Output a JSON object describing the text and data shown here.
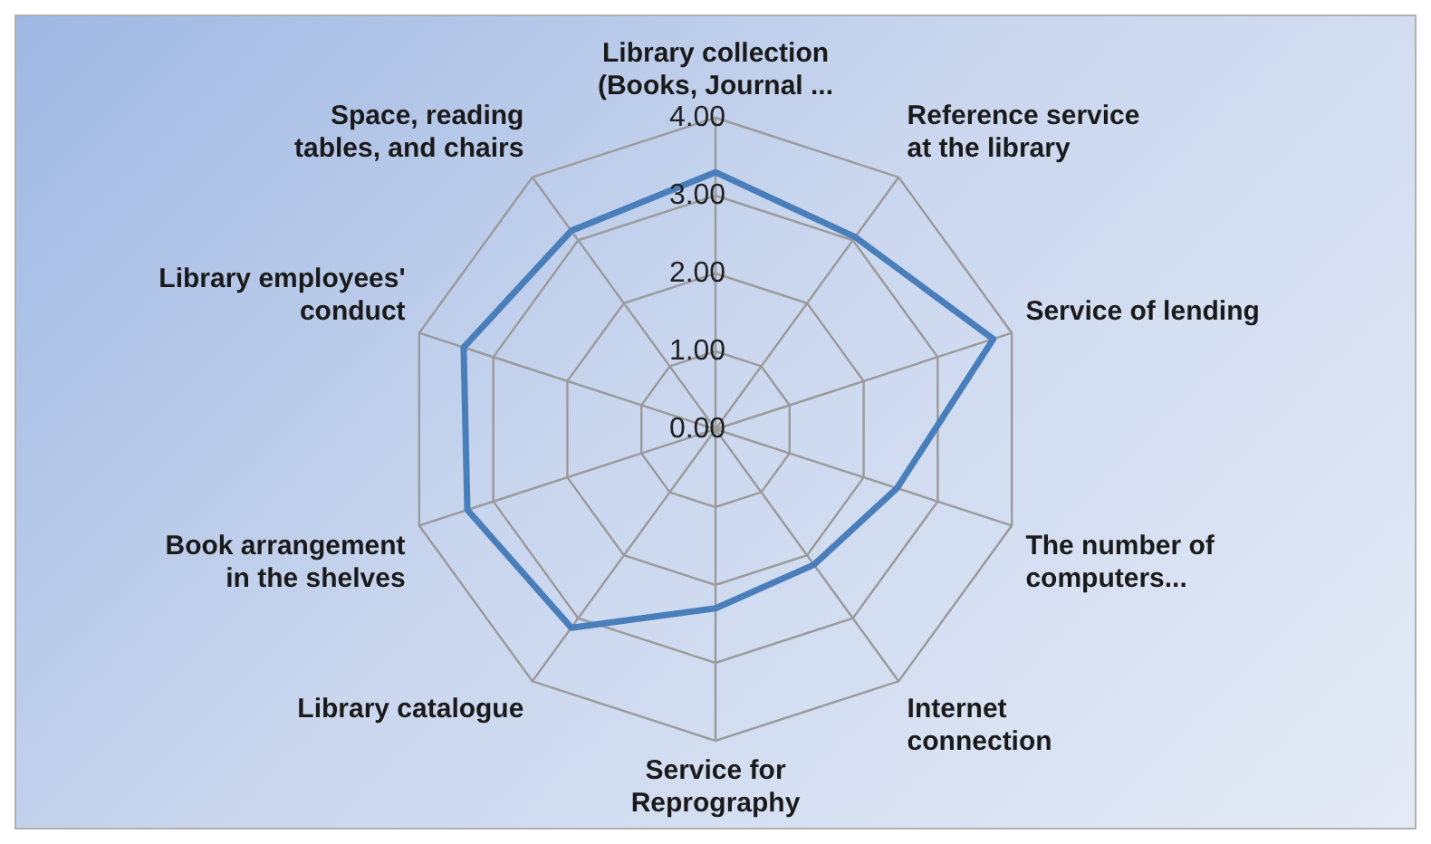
{
  "chart_data": {
    "type": "radar",
    "categories": [
      "Library collection\n(Books, Journal ...",
      "Reference service\nat the library",
      "Service of lending",
      "The number of\ncomputers...",
      "Internet\nconnection",
      "Service for\nReprography",
      "Library catalogue",
      "Book arrangement\nin the shelves",
      "Library employees'\nconduct",
      "Space, reading\ntables, and chairs"
    ],
    "series": [
      {
        "color": "#4a7ebb",
        "values": [
          3.3,
          3.05,
          3.75,
          2.45,
          2.15,
          2.3,
          3.15,
          3.35,
          3.4,
          3.15
        ]
      }
    ],
    "ylim": [
      0,
      4
    ],
    "yticks": [
      {
        "value": 0,
        "label": "0.00"
      },
      {
        "value": 1,
        "label": "1.00"
      },
      {
        "value": 2,
        "label": "2.00"
      },
      {
        "value": 3,
        "label": "3.00"
      },
      {
        "value": 4,
        "label": "4.00"
      }
    ],
    "grid": true,
    "legend": false,
    "marker": "none",
    "line_style": "solid"
  }
}
